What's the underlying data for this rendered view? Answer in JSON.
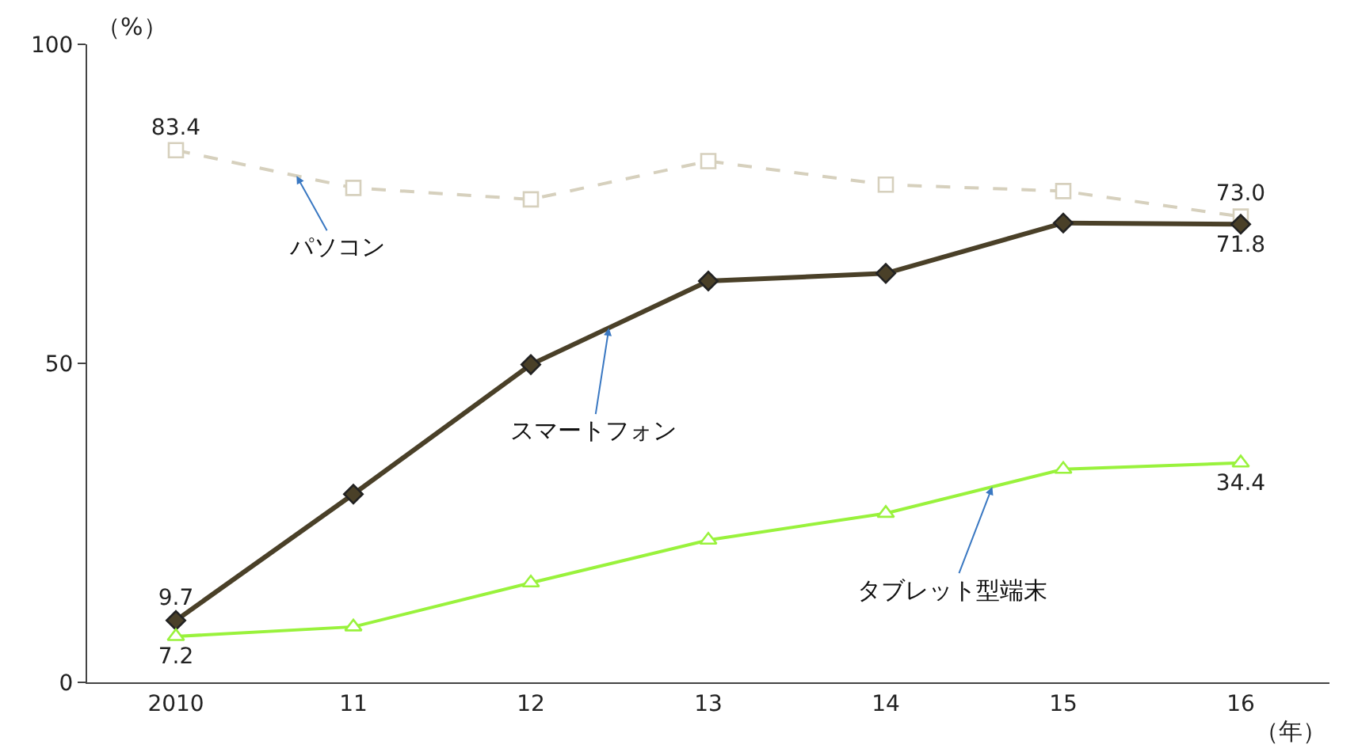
{
  "chart_data": {
    "type": "line",
    "xlabel": "（年）",
    "ylabel": "（%）",
    "categories": [
      "2010",
      "11",
      "12",
      "13",
      "14",
      "15",
      "16"
    ],
    "ylim": [
      0,
      100
    ],
    "yticks": [
      0,
      50,
      100
    ],
    "legend": false,
    "series": [
      {
        "name": "パソコン",
        "color": "#d6d0bd",
        "marker": "square",
        "line_style": "dashed",
        "values": [
          83.4,
          77.5,
          75.7,
          81.7,
          78.0,
          77.0,
          73.0
        ],
        "value_labels": [
          "83.4",
          null,
          null,
          null,
          null,
          null,
          "73.0"
        ]
      },
      {
        "name": "スマートフォン",
        "color": "#4a4028",
        "marker": "diamond",
        "line_style": "solid",
        "values": [
          9.7,
          29.5,
          49.8,
          62.9,
          64.1,
          72.0,
          71.8
        ],
        "value_labels": [
          "9.7",
          null,
          null,
          null,
          null,
          null,
          "71.8"
        ]
      },
      {
        "name": "タブレット型端末",
        "color": "#99f23c",
        "marker": "triangle",
        "line_style": "solid",
        "values": [
          7.2,
          8.7,
          15.6,
          22.3,
          26.5,
          33.4,
          34.4
        ],
        "value_labels": [
          "7.2",
          null,
          null,
          null,
          null,
          null,
          "34.4"
        ]
      }
    ]
  }
}
